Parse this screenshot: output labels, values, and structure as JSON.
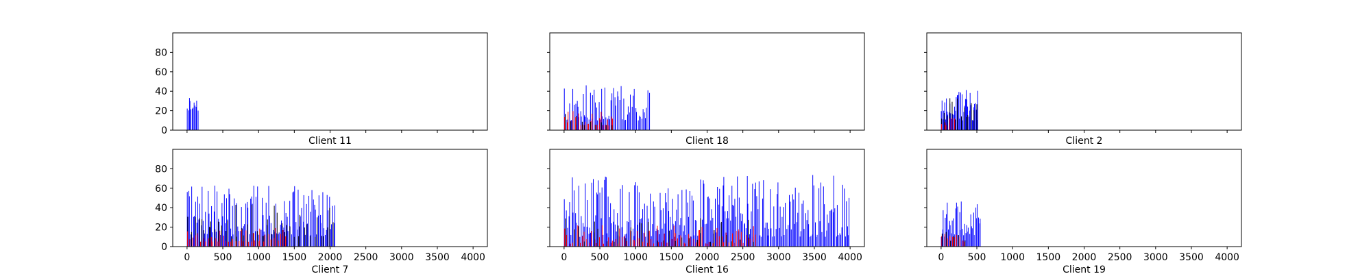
{
  "figure": {
    "columns": 3,
    "rows": 2,
    "colors": {
      "blue": "#0000ff",
      "red": "#ff0000",
      "black": "#000000",
      "axes": "#000000"
    }
  },
  "chart_data": [
    {
      "type": "bar",
      "xlabel": "Client 11",
      "xlim": [
        -200,
        4200
      ],
      "ylim": [
        0,
        100
      ],
      "xticks": [
        0,
        500,
        1000,
        1500,
        2000,
        2500,
        3000,
        3500,
        4000
      ],
      "yticks": [
        0,
        20,
        40,
        60,
        80
      ],
      "show_xtick_labels": false,
      "show_ytick_labels": true,
      "series": [
        {
          "color": "#0000ff",
          "x_range": [
            0,
            160
          ],
          "count": 12,
          "y_range": [
            20,
            37
          ],
          "seed": 11
        }
      ]
    },
    {
      "type": "bar",
      "xlabel": "Client 18",
      "xlim": [
        -200,
        4200
      ],
      "ylim": [
        0,
        100
      ],
      "xticks": [
        0,
        500,
        1000,
        1500,
        2000,
        2500,
        3000,
        3500,
        4000
      ],
      "yticks": [
        0,
        20,
        40,
        60,
        80
      ],
      "show_xtick_labels": false,
      "show_ytick_labels": false,
      "series": [
        {
          "color": "#0000ff",
          "x_range": [
            0,
            1200
          ],
          "count": 70,
          "y_range": [
            10,
            48
          ],
          "seed": 18
        },
        {
          "color": "#ff0000",
          "x_range": [
            0,
            700
          ],
          "count": 25,
          "y_range": [
            5,
            20
          ],
          "seed": 181
        },
        {
          "color": "#000000",
          "x_range": [
            0,
            700
          ],
          "count": 10,
          "y_range": [
            5,
            22
          ],
          "seed": 182
        }
      ]
    },
    {
      "type": "bar",
      "xlabel": "Client 2",
      "xlim": [
        -200,
        4200
      ],
      "ylim": [
        0,
        100
      ],
      "xticks": [
        0,
        500,
        1000,
        1500,
        2000,
        2500,
        3000,
        3500,
        4000
      ],
      "yticks": [
        0,
        20,
        40,
        60,
        80
      ],
      "show_xtick_labels": false,
      "show_ytick_labels": false,
      "series": [
        {
          "color": "#0000ff",
          "x_range": [
            0,
            520
          ],
          "count": 45,
          "y_range": [
            10,
            43
          ],
          "seed": 2
        },
        {
          "color": "#000000",
          "x_range": [
            0,
            520
          ],
          "count": 14,
          "y_range": [
            10,
            38
          ],
          "seed": 21
        },
        {
          "color": "#ff0000",
          "x_range": [
            0,
            200
          ],
          "count": 6,
          "y_range": [
            5,
            15
          ],
          "seed": 22
        }
      ]
    },
    {
      "type": "bar",
      "xlabel": "Client 7",
      "xlim": [
        -200,
        4200
      ],
      "ylim": [
        0,
        100
      ],
      "xticks": [
        0,
        500,
        1000,
        1500,
        2000,
        2500,
        3000,
        3500,
        4000
      ],
      "yticks": [
        0,
        20,
        40,
        60,
        80
      ],
      "show_xtick_labels": true,
      "show_ytick_labels": true,
      "series": [
        {
          "color": "#0000ff",
          "x_range": [
            0,
            2080
          ],
          "count": 130,
          "y_range": [
            12,
            63
          ],
          "seed": 7
        },
        {
          "color": "#000000",
          "x_range": [
            0,
            2080
          ],
          "count": 45,
          "y_range": [
            10,
            45
          ],
          "seed": 71
        },
        {
          "color": "#ff0000",
          "x_range": [
            0,
            1400
          ],
          "count": 40,
          "y_range": [
            5,
            20
          ],
          "seed": 72
        }
      ]
    },
    {
      "type": "bar",
      "xlabel": "Client 16",
      "xlim": [
        -200,
        4200
      ],
      "ylim": [
        0,
        100
      ],
      "xticks": [
        0,
        500,
        1000,
        1500,
        2000,
        2500,
        3000,
        3500,
        4000
      ],
      "yticks": [
        0,
        20,
        40,
        60,
        80
      ],
      "show_xtick_labels": true,
      "show_ytick_labels": false,
      "series": [
        {
          "color": "#0000ff",
          "x_range": [
            0,
            4000
          ],
          "count": 260,
          "y_range": [
            10,
            74
          ],
          "seed": 16
        },
        {
          "color": "#ff0000",
          "x_range": [
            0,
            2700
          ],
          "count": 80,
          "y_range": [
            3,
            22
          ],
          "seed": 161
        },
        {
          "color": "#000000",
          "x_range": [
            0,
            2700
          ],
          "count": 30,
          "y_range": [
            5,
            30
          ],
          "seed": 162
        }
      ]
    },
    {
      "type": "bar",
      "xlabel": "Client 19",
      "xlim": [
        -200,
        4200
      ],
      "ylim": [
        0,
        100
      ],
      "xticks": [
        0,
        500,
        1000,
        1500,
        2000,
        2500,
        3000,
        3500,
        4000
      ],
      "yticks": [
        0,
        20,
        40,
        60,
        80
      ],
      "show_xtick_labels": true,
      "show_ytick_labels": false,
      "series": [
        {
          "color": "#0000ff",
          "x_range": [
            0,
            560
          ],
          "count": 40,
          "y_range": [
            10,
            47
          ],
          "seed": 19
        },
        {
          "color": "#ff0000",
          "x_range": [
            0,
            350
          ],
          "count": 10,
          "y_range": [
            5,
            18
          ],
          "seed": 191
        },
        {
          "color": "#000000",
          "x_range": [
            0,
            350
          ],
          "count": 6,
          "y_range": [
            5,
            20
          ],
          "seed": 192
        }
      ]
    }
  ]
}
